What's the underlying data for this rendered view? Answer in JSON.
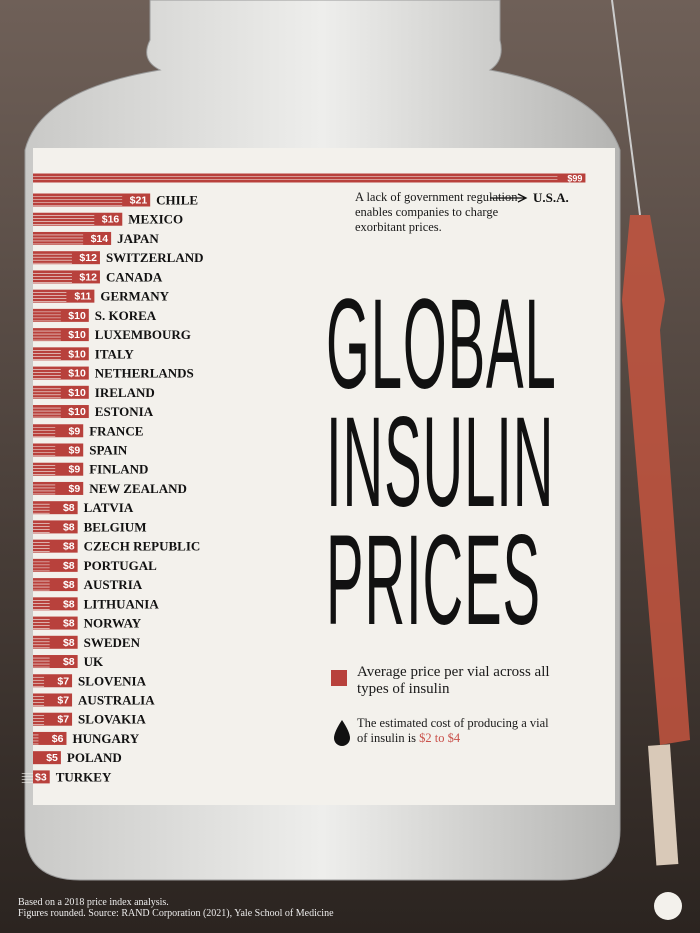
{
  "chart_data": {
    "type": "bar",
    "title": "GLOBAL INSULIN PRICES",
    "categories": [
      "U.S.A.",
      "CHILE",
      "MEXICO",
      "JAPAN",
      "SWITZERLAND",
      "CANADA",
      "GERMANY",
      "S. KOREA",
      "LUXEMBOURG",
      "ITALY",
      "NETHERLANDS",
      "IRELAND",
      "ESTONIA",
      "FRANCE",
      "SPAIN",
      "FINLAND",
      "NEW ZEALAND",
      "LATVIA",
      "BELGIUM",
      "CZECH REPUBLIC",
      "PORTUGAL",
      "AUSTRIA",
      "LITHUANIA",
      "NORWAY",
      "SWEDEN",
      "UK",
      "SLOVENIA",
      "AUSTRALIA",
      "SLOVAKIA",
      "HUNGARY",
      "POLAND",
      "TURKEY"
    ],
    "values": [
      99,
      21,
      16,
      14,
      12,
      12,
      11,
      10,
      10,
      10,
      10,
      10,
      10,
      9,
      9,
      9,
      9,
      8,
      8,
      8,
      8,
      8,
      8,
      8,
      8,
      8,
      7,
      7,
      7,
      6,
      5,
      3
    ],
    "value_labels": [
      "$99",
      "$21",
      "$16",
      "$14",
      "$12",
      "$12",
      "$11",
      "$10",
      "$10",
      "$10",
      "$10",
      "$10",
      "$10",
      "$9",
      "$9",
      "$9",
      "$9",
      "$8",
      "$8",
      "$8",
      "$8",
      "$8",
      "$8",
      "$8",
      "$8",
      "$8",
      "$7",
      "$7",
      "$7",
      "$6",
      "$5",
      "$3"
    ],
    "color": "#b8413c",
    "annotation": "A lack of government regulation enables companies to charge exorbitant prices.",
    "legend": "Average price per vial across all types of insulin",
    "note": "The estimated cost of producing a vial of insulin is",
    "note_highlight": "$2 to $4",
    "source": [
      "Based on a 2018 price index analysis.",
      "Figures rounded. Source: RAND Corporation (2021), Yale School of Medicine"
    ]
  }
}
